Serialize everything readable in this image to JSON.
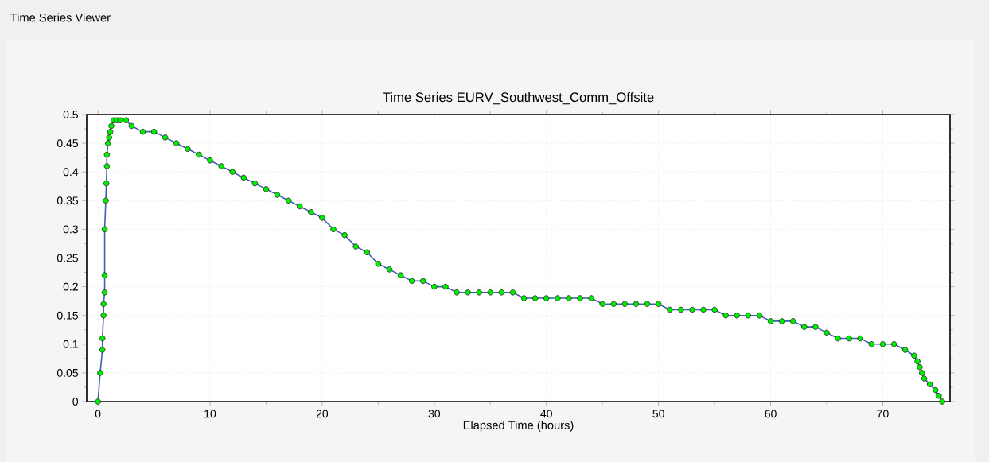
{
  "chart_data": {
    "type": "line",
    "title": "Time Series EURV_Southwest_Comm_Offsite",
    "xlabel": "Elapsed Time (hours)",
    "annotations": [
      "Time Series Viewer"
    ],
    "x": [
      0,
      0.2,
      0.4,
      0.4,
      0.5,
      0.5,
      0.6,
      0.6,
      0.6,
      0.7,
      0.75,
      0.8,
      0.8,
      0.9,
      1.0,
      1.1,
      1.2,
      1.4,
      1.7,
      2.0,
      2.5,
      3,
      4,
      5,
      6,
      7,
      8,
      9,
      10,
      11,
      12,
      13,
      14,
      15,
      16,
      17,
      18,
      19,
      20,
      21,
      22,
      23,
      24,
      25,
      26,
      27,
      28,
      29,
      30,
      31,
      32,
      33,
      34,
      35,
      36,
      37,
      38,
      39,
      40,
      41,
      42,
      43,
      44,
      45,
      46,
      47,
      48,
      49,
      50,
      51,
      52,
      53,
      54,
      55,
      56,
      57,
      58,
      59,
      60,
      61,
      62,
      63,
      64,
      65,
      66,
      67,
      68,
      69,
      70,
      71,
      72,
      72.8,
      73.1,
      73.3,
      73.5,
      73.7,
      74.2,
      74.7,
      75,
      75.3
    ],
    "series": [
      {
        "color": "#00ee00",
        "values": [
          0,
          0.05,
          0.09,
          0.11,
          0.15,
          0.17,
          0.19,
          0.22,
          0.3,
          0.35,
          0.38,
          0.41,
          0.43,
          0.45,
          0.46,
          0.47,
          0.48,
          0.49,
          0.49,
          0.49,
          0.49,
          0.48,
          0.47,
          0.47,
          0.46,
          0.45,
          0.44,
          0.43,
          0.42,
          0.41,
          0.4,
          0.39,
          0.38,
          0.37,
          0.36,
          0.35,
          0.34,
          0.33,
          0.32,
          0.3,
          0.29,
          0.27,
          0.26,
          0.24,
          0.23,
          0.22,
          0.21,
          0.21,
          0.2,
          0.2,
          0.19,
          0.19,
          0.19,
          0.19,
          0.19,
          0.19,
          0.18,
          0.18,
          0.18,
          0.18,
          0.18,
          0.18,
          0.18,
          0.17,
          0.17,
          0.17,
          0.17,
          0.17,
          0.17,
          0.16,
          0.16,
          0.16,
          0.16,
          0.16,
          0.15,
          0.15,
          0.15,
          0.15,
          0.14,
          0.14,
          0.14,
          0.13,
          0.13,
          0.12,
          0.11,
          0.11,
          0.11,
          0.1,
          0.1,
          0.1,
          0.09,
          0.08,
          0.07,
          0.06,
          0.05,
          0.04,
          0.03,
          0.02,
          0.01,
          0
        ]
      }
    ],
    "xlim": [
      -1,
      76
    ],
    "ylim": [
      0,
      0.5
    ],
    "xticks": [
      0,
      10,
      20,
      30,
      40,
      50,
      60,
      70
    ],
    "yticks": [
      0,
      0.05,
      0.1,
      0.15,
      0.2,
      0.25,
      0.3,
      0.35,
      0.4,
      0.45,
      0.5
    ],
    "grid": true,
    "marker": "circle",
    "line_style": "solid"
  }
}
